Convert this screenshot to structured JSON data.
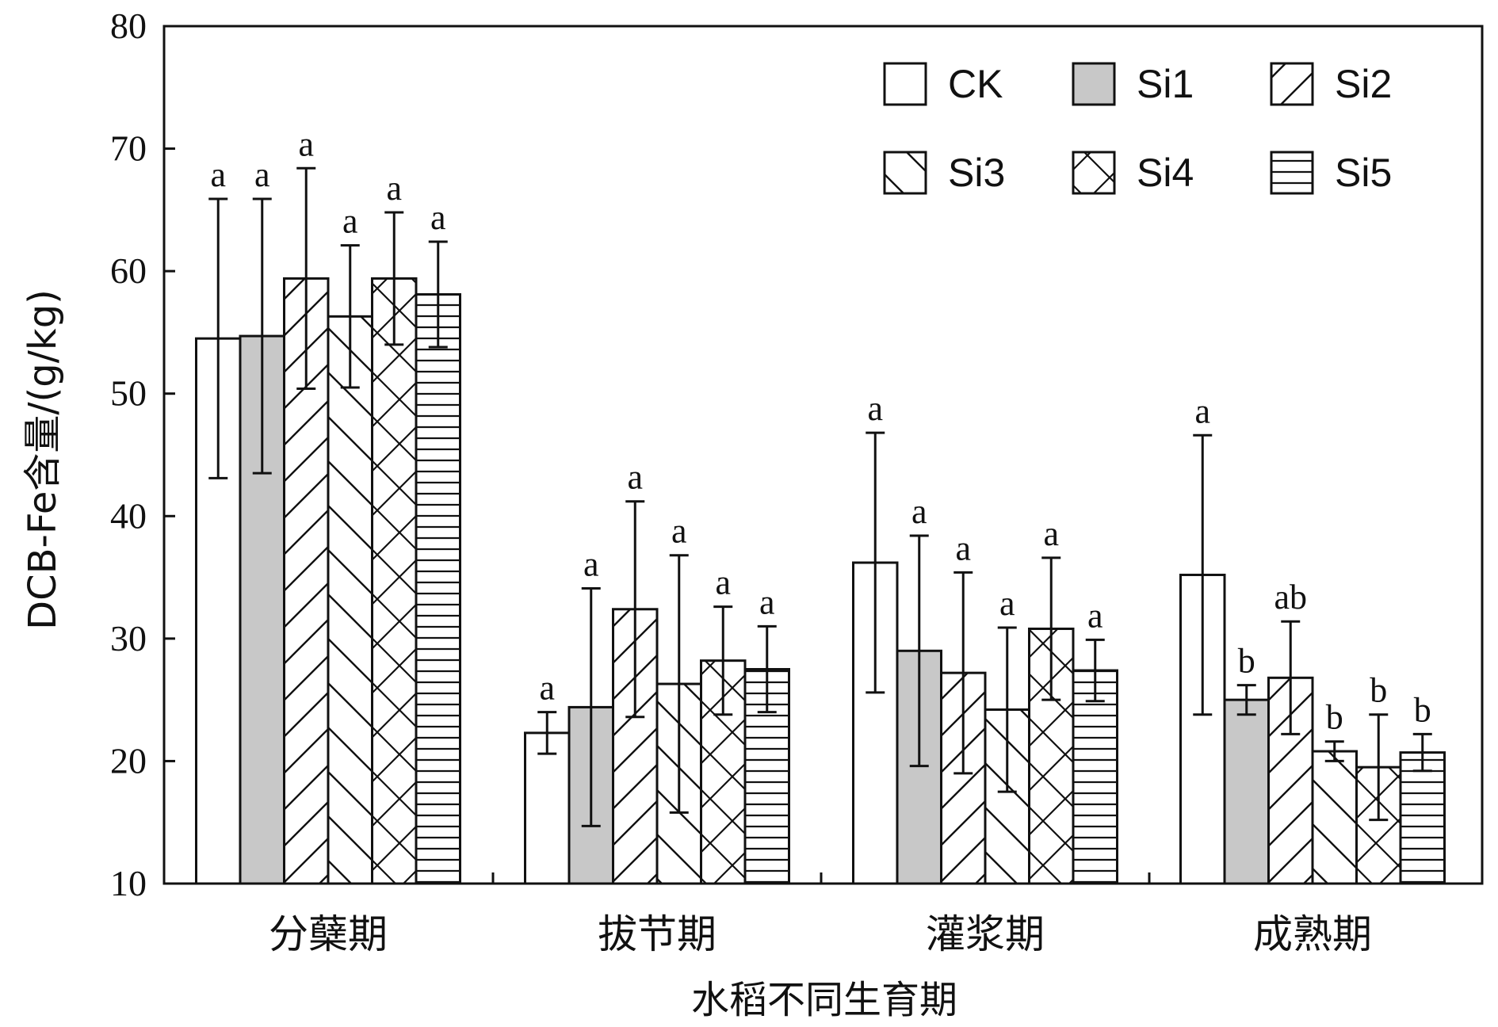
{
  "chart_data": {
    "type": "bar",
    "title": "",
    "xlabel": "水稻不同生育期",
    "ylabel": "DCB-Fe含量/(g/kg)",
    "ylim": [
      10,
      80
    ],
    "yticks": [
      10,
      20,
      30,
      40,
      50,
      60,
      70,
      80
    ],
    "grid": false,
    "legend_position": "top-right",
    "categories": [
      "分蘖期",
      "拔节期",
      "灌浆期",
      "成熟期"
    ],
    "series": [
      {
        "name": "CK",
        "pattern": "blank",
        "fill": "#ffffff",
        "values": [
          54.5,
          22.3,
          36.2,
          35.2
        ],
        "errors": [
          11.4,
          1.7,
          10.6,
          11.4
        ],
        "sig": [
          "a",
          "a",
          "a",
          "a"
        ]
      },
      {
        "name": "Si1",
        "pattern": "solid-gray",
        "fill": "#c8c8c8",
        "values": [
          54.7,
          24.4,
          29.0,
          25.0
        ],
        "errors": [
          11.2,
          9.7,
          9.4,
          1.2
        ],
        "sig": [
          "a",
          "a",
          "a",
          "b"
        ]
      },
      {
        "name": "Si2",
        "pattern": "diag-fwd",
        "fill": "#ffffff",
        "values": [
          59.4,
          32.4,
          27.2,
          26.8
        ],
        "errors": [
          9.0,
          8.8,
          8.2,
          4.6
        ],
        "sig": [
          "a",
          "a",
          "a",
          "ab"
        ]
      },
      {
        "name": "Si3",
        "pattern": "diag-back",
        "fill": "#ffffff",
        "values": [
          56.3,
          26.3,
          24.2,
          20.8
        ],
        "errors": [
          5.8,
          10.5,
          6.7,
          0.8
        ],
        "sig": [
          "a",
          "a",
          "a",
          "b"
        ]
      },
      {
        "name": "Si4",
        "pattern": "cross",
        "fill": "#ffffff",
        "values": [
          59.4,
          28.2,
          30.8,
          19.5
        ],
        "errors": [
          5.4,
          4.4,
          5.8,
          4.3
        ],
        "sig": [
          "a",
          "a",
          "a",
          "b"
        ]
      },
      {
        "name": "Si5",
        "pattern": "horiz",
        "fill": "#ffffff",
        "values": [
          58.1,
          27.5,
          27.4,
          20.7
        ],
        "errors": [
          4.3,
          3.5,
          2.5,
          1.5
        ],
        "sig": [
          "a",
          "a",
          "a",
          "b"
        ]
      }
    ]
  }
}
